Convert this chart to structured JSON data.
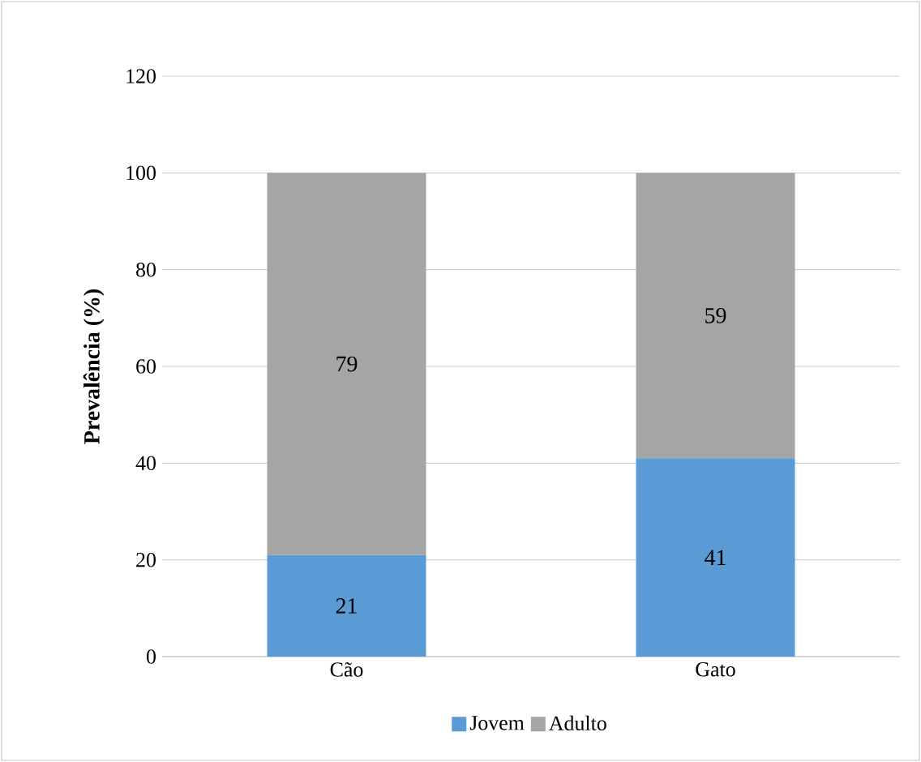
{
  "chart_data": {
    "type": "bar",
    "stacked": true,
    "ylabel": "Prevalência (%)",
    "categories": [
      "Cão",
      "Gato"
    ],
    "series": [
      {
        "name": "Jovem",
        "color": "#5b9bd5",
        "values": [
          21,
          41
        ]
      },
      {
        "name": "Adulto",
        "color": "#a5a5a5",
        "values": [
          79,
          59
        ]
      }
    ],
    "ylim": [
      0,
      120
    ],
    "yticks": [
      0,
      20,
      40,
      60,
      80,
      100,
      120
    ],
    "grid": "y",
    "legend": "bottom",
    "data_labels": true
  }
}
